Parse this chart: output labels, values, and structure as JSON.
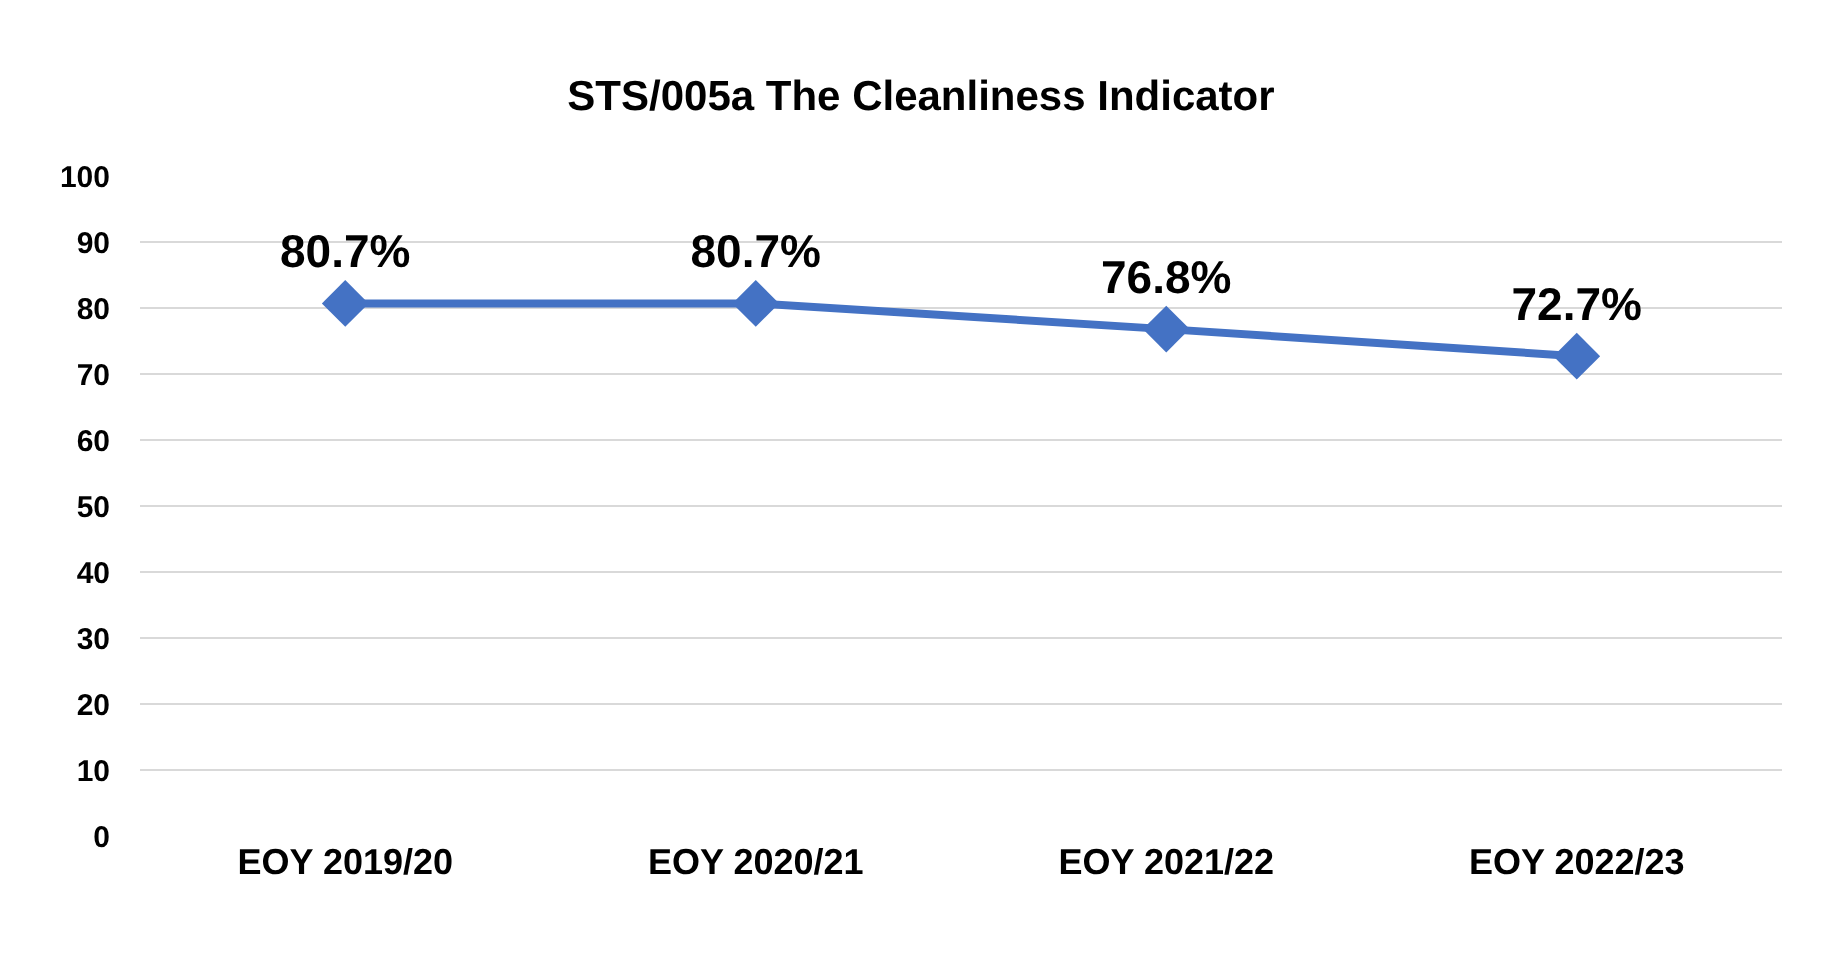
{
  "chart_data": {
    "type": "line",
    "title": "STS/005a The Cleanliness Indicator",
    "categories": [
      "EOY 2019/20",
      "EOY 2020/21",
      "EOY 2021/22",
      "EOY 2022/23"
    ],
    "series": [
      {
        "color": "#4472c4",
        "values": [
          80.7,
          80.7,
          76.8,
          72.7
        ],
        "value_labels": [
          "80.7%",
          "80.7%",
          "76.8%",
          "72.7%"
        ]
      }
    ],
    "ylim": [
      0,
      100
    ],
    "yticks": [
      0,
      10,
      20,
      30,
      40,
      50,
      60,
      70,
      80,
      90,
      100
    ],
    "grid": "y",
    "marker": "diamond",
    "line_style": "solid"
  }
}
